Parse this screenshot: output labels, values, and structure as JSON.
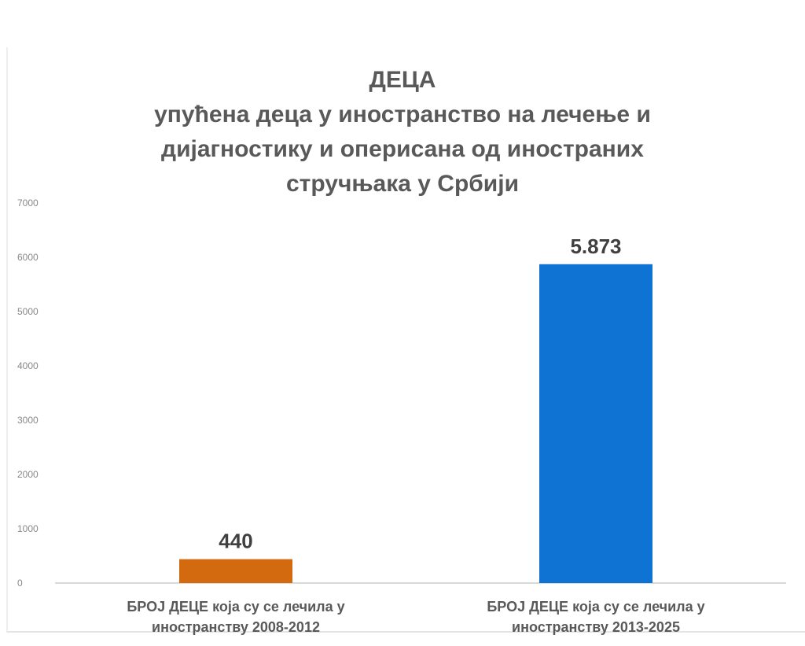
{
  "chart_data": {
    "type": "bar",
    "title": "ДЕЦА",
    "subtitle_lines": [
      "упућена деца у иностранство на лечење и",
      "дијагностику и оперисана од иностраних",
      "стручњака у Србији"
    ],
    "categories": [
      [
        "БРОЈ ДЕЦЕ која су се лечила у",
        "иностранству 2008-2012"
      ],
      [
        "БРОЈ ДЕЦЕ која су се лечила у",
        "иностранству 2013-2025"
      ]
    ],
    "values": [
      440,
      5873
    ],
    "data_labels": [
      "440",
      "5.873"
    ],
    "colors": [
      "#d46a0f",
      "#0f73d3"
    ],
    "ylim": [
      0,
      7000
    ],
    "yticks": [
      "0",
      "1000",
      "2000",
      "3000",
      "4000",
      "5000",
      "6000",
      "7000"
    ],
    "grid": false,
    "legend": "none"
  }
}
